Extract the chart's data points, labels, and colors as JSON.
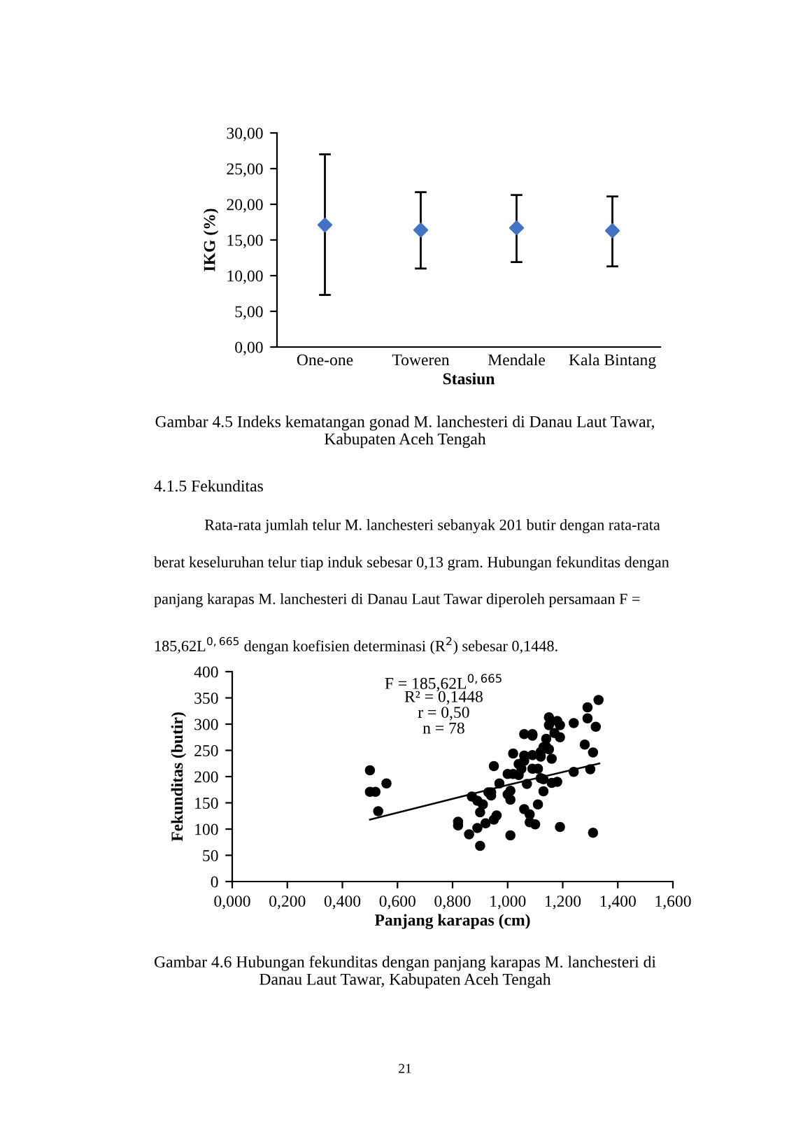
{
  "chart_data": [
    {
      "type": "scatter",
      "xlabel": "Stasiun",
      "ylabel": "IKG (%)",
      "categories": [
        "One-one",
        "Toweren",
        "Mendale",
        "Kala Bintang"
      ],
      "series": [
        {
          "color": "#4472c4",
          "values": [
            17.1,
            16.4,
            16.7,
            16.3
          ],
          "errors": [
            [
              7.3,
              27.0
            ],
            [
              11.0,
              21.7
            ],
            [
              11.9,
              21.3
            ],
            [
              11.3,
              21.1
            ]
          ]
        }
      ],
      "marker": "diamond",
      "grid": false,
      "legend": false,
      "ylim": [
        0,
        30
      ],
      "yticks": [
        {
          "value": 0,
          "label": "0,00"
        },
        {
          "value": 5,
          "label": "5,00"
        },
        {
          "value": 10,
          "label": "10,00"
        },
        {
          "value": 15,
          "label": "15,00"
        },
        {
          "value": 20,
          "label": "20,00"
        },
        {
          "value": 25,
          "label": "25,00"
        },
        {
          "value": 30,
          "label": "30,00"
        }
      ],
      "annotations": [
        "Gambar 4.5 Indeks kematangan gonad M. lanchesteri di Danau Laut Tawar, Kabupaten Aceh Tengah"
      ]
    },
    {
      "type": "scatter",
      "xlabel": "Panjang karapas (cm)",
      "ylabel": "Fekunditas (butir)",
      "marker": "circle",
      "grid": false,
      "legend": false,
      "series": [
        {
          "type": "scatter",
          "color": "#000000",
          "x": [
            0.5,
            0.52,
            0.5,
            0.53,
            0.56,
            0.82,
            0.82,
            0.86,
            0.87,
            0.89,
            0.89,
            0.9,
            0.9,
            0.91,
            0.92,
            0.93,
            0.94,
            0.94,
            0.95,
            0.95,
            0.96,
            0.97,
            1.0,
            1.0,
            1.01,
            1.01,
            1.01,
            1.02,
            1.02,
            1.04,
            1.04,
            1.05,
            1.06,
            1.06,
            1.06,
            1.06,
            1.07,
            1.08,
            1.08,
            1.09,
            1.09,
            1.09,
            1.09,
            1.1,
            1.11,
            1.11,
            1.12,
            1.12,
            1.12,
            1.13,
            1.13,
            1.13,
            1.14,
            1.14,
            1.15,
            1.15,
            1.15,
            1.16,
            1.16,
            1.17,
            1.18,
            1.18,
            1.19,
            1.19,
            1.19,
            1.24,
            1.24,
            1.28,
            1.29,
            1.29,
            1.3,
            1.31,
            1.31,
            1.32,
            1.33
          ],
          "values": [
            171,
            171,
            212,
            134,
            187,
            114,
            107,
            90,
            162,
            154,
            102,
            68,
            132,
            147,
            111,
            170,
            164,
            170,
            220,
            118,
            126,
            187,
            205,
            166,
            173,
            156,
            88,
            244,
            205,
            203,
            224,
            215,
            240,
            138,
            281,
            230,
            186,
            113,
            128,
            215,
            241,
            281,
            278,
            109,
            147,
            215,
            197,
            238,
            247,
            195,
            172,
            256,
            272,
            257,
            252,
            313,
            298,
            188,
            234,
            283,
            190,
            306,
            298,
            275,
            104,
            209,
            302,
            261,
            332,
            311,
            214,
            246,
            93,
            295,
            346
          ]
        },
        {
          "type": "line",
          "marker": "none",
          "color": "#000000",
          "x": [
            0.5,
            1.0,
            1.333
          ],
          "values": [
            118,
            184,
            225
          ]
        }
      ],
      "xlim": [
        0,
        1.6
      ],
      "ylim": [
        0,
        400
      ],
      "xticks": [
        {
          "value": 0,
          "label": "0,000"
        },
        {
          "value": 0.2,
          "label": "0,200"
        },
        {
          "value": 0.4,
          "label": "0,400"
        },
        {
          "value": 0.6,
          "label": "0,600"
        },
        {
          "value": 0.8,
          "label": "0,800"
        },
        {
          "value": 1.0,
          "label": "1,000"
        },
        {
          "value": 1.2,
          "label": "1,200"
        },
        {
          "value": 1.4,
          "label": "1,400"
        },
        {
          "value": 1.6,
          "label": "1,600"
        }
      ],
      "yticks": [
        0,
        50,
        100,
        150,
        200,
        250,
        300,
        350,
        400
      ],
      "annotations": [
        "F = 185,62L$^{0,665}$",
        "R² = 0,1448",
        "r = 0,50",
        "n = 78",
        "4.1.5 Fekunditas",
        "Rata-rata jumlah telur M. lanchesteri sebanyak 201 butir dengan rata-rata berat keseluruhan telur tiap induk sebesar 0,13 gram. Hubungan fekunditas dengan panjang karapas M. lanchesteri di Danau Laut Tawar diperoleh persamaan F = 185,62L$^{0,665}$ dengan koefisien determinasi (R$^{2}$) sebesar 0,1448.",
        "Gambar 4.6 Hubungan fekunditas dengan panjang karapas M. lanchesteri di Danau Laut Tawar, Kabupaten Aceh Tengah",
        "21"
      ]
    }
  ]
}
